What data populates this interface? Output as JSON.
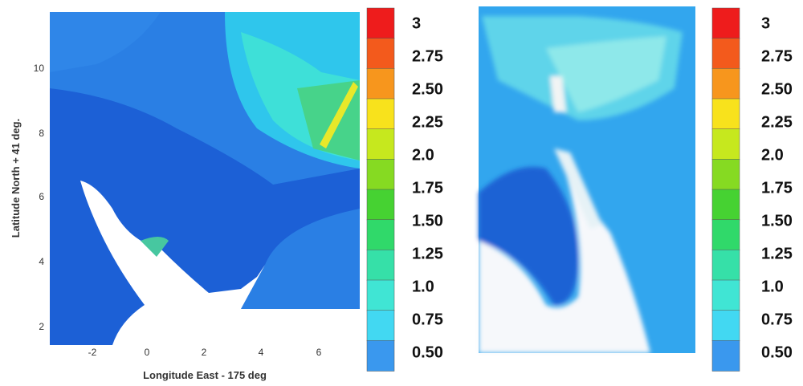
{
  "left_panel": {
    "x_axis_label": "Longitude East - 175 deg",
    "y_axis_label": "Latitude North + 41 deg.",
    "x_ticks": [
      "-2",
      "0",
      "2",
      "4",
      "6"
    ],
    "y_ticks": [
      "10",
      "8",
      "6",
      "4",
      "2"
    ],
    "colorbar_labels": [
      "3",
      "2.75",
      "2.50",
      "2.25",
      "2.0",
      "1.75",
      "1.50",
      "1.25",
      "1.0",
      "0.75",
      "0.50"
    ]
  },
  "right_panel": {
    "colorbar_labels": [
      "3",
      "2.75",
      "2.50",
      "2.25",
      "2.0",
      "1.75",
      "1.50",
      "1.25",
      "1.0",
      "0.75",
      "0.50"
    ]
  }
}
